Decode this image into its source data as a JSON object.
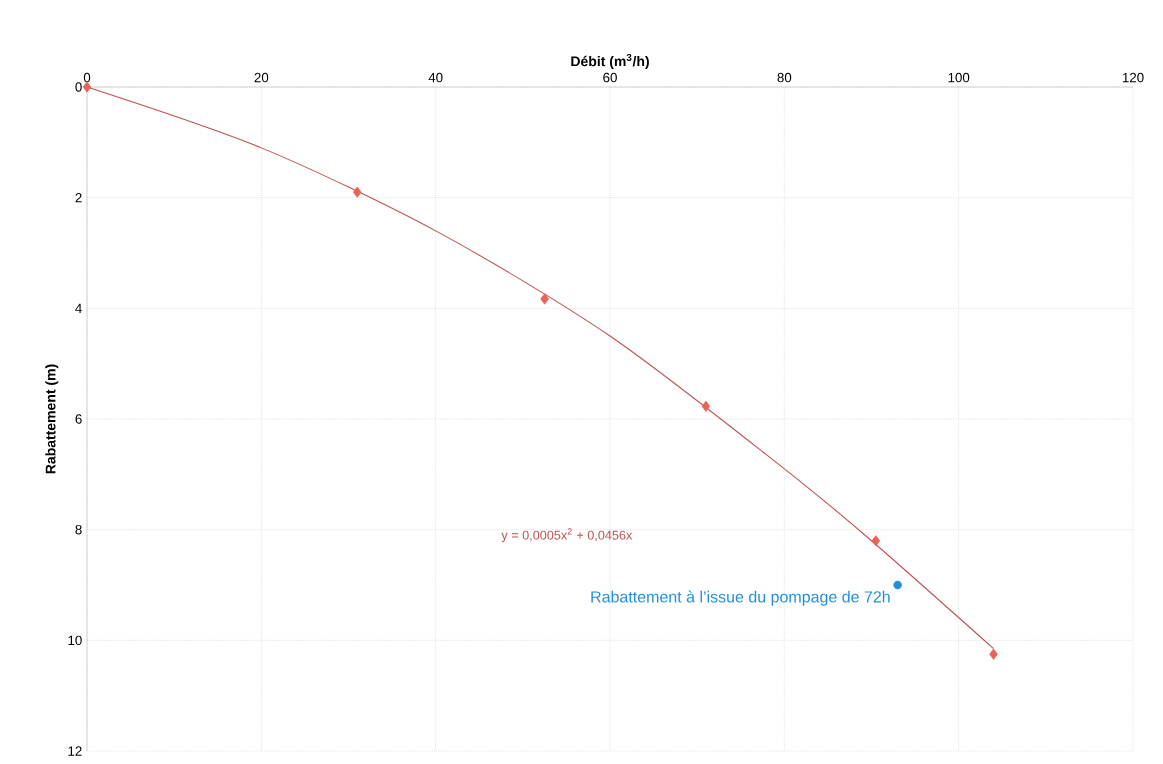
{
  "chart_data": {
    "type": "scatter",
    "xlabel": "Débit (m$^{3}$/h)",
    "ylabel": "Rabattement (m)",
    "xlim": [
      0,
      120
    ],
    "xticks": [
      0,
      20,
      40,
      60,
      80,
      100,
      120
    ],
    "ylim": [
      12,
      0
    ],
    "yticks": [
      0,
      2,
      4,
      6,
      8,
      10,
      12
    ],
    "grid": true,
    "legend": false,
    "series": [
      {
        "type": "line",
        "color": "#c0504d",
        "marker": "none",
        "x": [
          0,
          20,
          40,
          60,
          80,
          90,
          104
        ],
        "values": [
          0,
          1.1,
          2.6,
          4.5,
          6.9,
          8.2,
          10.15
        ]
      },
      {
        "color": "#e8625a",
        "marker": "diamond",
        "x": [
          0,
          31,
          52.5,
          71,
          90.5,
          104
        ],
        "values": [
          0,
          1.9,
          3.83,
          5.77,
          8.2,
          10.25
        ]
      },
      {
        "name": "Rabattement à l’issue du pompage de 72h",
        "color": "#1f8fde",
        "marker": "circle",
        "x": [
          93
        ],
        "values": [
          9.0
        ]
      }
    ],
    "annotations": [
      "y = 0,0005x$^{2}$ + 0,0456x"
    ]
  }
}
